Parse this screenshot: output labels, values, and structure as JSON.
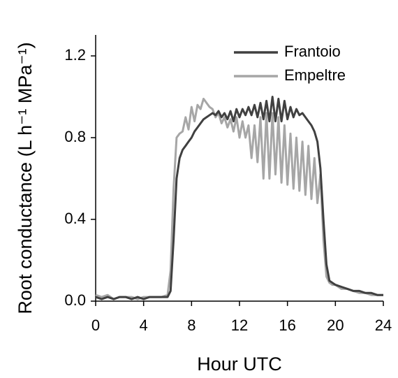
{
  "chart_data": {
    "type": "line",
    "x_label": "Hour UTC",
    "y_label": "Root conductance (L h⁻¹ MPa⁻¹)",
    "x": [
      0,
      0.5,
      1,
      1.5,
      2,
      2.5,
      3,
      3.5,
      4,
      4.5,
      5,
      5.5,
      6,
      6.25,
      6.5,
      6.75,
      7,
      7.25,
      7.5,
      7.75,
      8,
      8.25,
      8.5,
      8.75,
      9,
      9.25,
      9.5,
      9.75,
      10,
      10.25,
      10.5,
      10.75,
      11,
      11.25,
      11.5,
      11.75,
      12,
      12.25,
      12.5,
      12.75,
      13,
      13.25,
      13.5,
      13.75,
      14,
      14.25,
      14.5,
      14.75,
      15,
      15.25,
      15.5,
      15.75,
      16,
      16.25,
      16.5,
      16.75,
      17,
      17.25,
      17.5,
      17.75,
      18,
      18.25,
      18.5,
      18.75,
      19,
      19.25,
      19.5,
      19.75,
      20,
      20.5,
      21,
      21.5,
      22,
      22.5,
      23,
      23.5,
      24
    ],
    "series": [
      {
        "name": "Frantoio",
        "color": "#404040",
        "values": [
          0.02,
          0.01,
          0.02,
          0.01,
          0.02,
          0.02,
          0.01,
          0.02,
          0.01,
          0.02,
          0.02,
          0.02,
          0.02,
          0.05,
          0.3,
          0.6,
          0.7,
          0.74,
          0.76,
          0.78,
          0.8,
          0.83,
          0.85,
          0.87,
          0.89,
          0.9,
          0.91,
          0.92,
          0.91,
          0.93,
          0.9,
          0.92,
          0.89,
          0.93,
          0.88,
          0.94,
          0.9,
          0.94,
          0.91,
          0.95,
          0.91,
          0.96,
          0.9,
          0.97,
          0.89,
          0.98,
          0.88,
          1.0,
          0.88,
          0.99,
          0.88,
          0.98,
          0.89,
          0.95,
          0.9,
          0.94,
          0.91,
          0.92,
          0.9,
          0.88,
          0.86,
          0.83,
          0.78,
          0.65,
          0.4,
          0.18,
          0.1,
          0.09,
          0.08,
          0.07,
          0.06,
          0.05,
          0.05,
          0.04,
          0.04,
          0.03,
          0.03
        ]
      },
      {
        "name": "Empeltre",
        "color": "#a6a6a6",
        "values": [
          0.03,
          0.02,
          0.03,
          0.01,
          0.02,
          0.02,
          0.02,
          0.01,
          0.02,
          0.02,
          0.02,
          0.02,
          0.03,
          0.15,
          0.55,
          0.8,
          0.82,
          0.83,
          0.9,
          0.84,
          0.95,
          0.88,
          0.96,
          0.94,
          0.99,
          0.97,
          0.95,
          0.94,
          0.9,
          0.92,
          0.87,
          0.9,
          0.85,
          0.89,
          0.83,
          0.9,
          0.8,
          0.88,
          0.8,
          0.86,
          0.7,
          0.86,
          0.68,
          0.9,
          0.6,
          0.92,
          0.6,
          0.92,
          0.62,
          0.9,
          0.58,
          0.86,
          0.57,
          0.82,
          0.55,
          0.8,
          0.54,
          0.78,
          0.52,
          0.76,
          0.5,
          0.7,
          0.48,
          0.62,
          0.3,
          0.12,
          0.09,
          0.08,
          0.08,
          0.06,
          0.06,
          0.05,
          0.04,
          0.04,
          0.03,
          0.03,
          0.03
        ]
      }
    ],
    "xlim": [
      0,
      24
    ],
    "xticks": [
      0,
      4,
      8,
      12,
      16,
      20,
      24
    ],
    "ylim": [
      0,
      1.2
    ],
    "yticks": [
      {
        "value": 0,
        "label": "0.0"
      },
      0.4,
      0.8,
      1.2
    ],
    "grid": false,
    "legend": "upper right"
  }
}
